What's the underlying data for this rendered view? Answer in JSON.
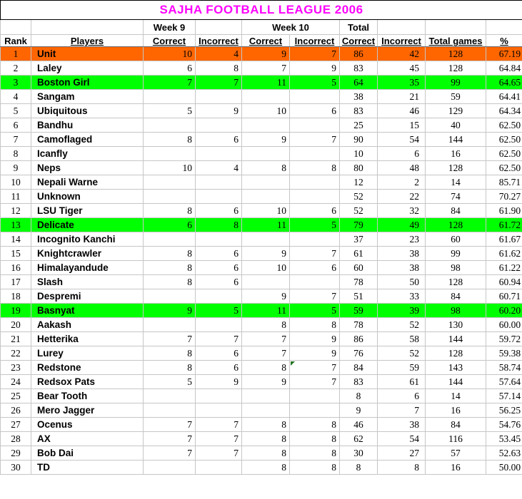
{
  "title": "SAJHA FOOTBALL LEAGUE 2006",
  "colors": {
    "title_text": "#ff00ff",
    "first_place_row": "#ff6600",
    "highlight_row": "#00ff00",
    "gridline": "#c6c6c6",
    "title_border": "#000000",
    "header_bottom_border": "#666666",
    "error_marker": "#217321",
    "text": "#000000"
  },
  "header": {
    "group": {
      "week9": "Week 9",
      "week10": "Week 10",
      "total": "Total"
    },
    "columns": [
      "Rank",
      "Players",
      "Correct",
      "Incorrect",
      "Correct",
      "Incorrect",
      "Correct",
      "Incorrect",
      "Total games",
      "%"
    ]
  },
  "table": {
    "rows": [
      {
        "rank": "1",
        "player": "Unit",
        "w9c": "10",
        "w9i": "4",
        "w10c": "9",
        "w10i": "7",
        "tc": "86",
        "ti": "42",
        "games": "128",
        "pct": "67.19",
        "highlight": "orange",
        "marker": ""
      },
      {
        "rank": "2",
        "player": "Laley",
        "w9c": "6",
        "w9i": "8",
        "w10c": "7",
        "w10i": "9",
        "tc": "83",
        "ti": "45",
        "games": "128",
        "pct": "64.84",
        "highlight": "",
        "marker": ""
      },
      {
        "rank": "3",
        "player": "Boston Girl",
        "w9c": "7",
        "w9i": "7",
        "w10c": "11",
        "w10i": "5",
        "tc": "64",
        "ti": "35",
        "games": "99",
        "pct": "64.65",
        "highlight": "green",
        "marker": ""
      },
      {
        "rank": "4",
        "player": "Sangam",
        "w9c": "",
        "w9i": "",
        "w10c": "",
        "w10i": "",
        "tc": "38",
        "ti": "21",
        "games": "59",
        "pct": "64.41",
        "highlight": "",
        "marker": ""
      },
      {
        "rank": "5",
        "player": "Ubiquitous",
        "w9c": "5",
        "w9i": "9",
        "w10c": "10",
        "w10i": "6",
        "tc": "83",
        "ti": "46",
        "games": "129",
        "pct": "64.34",
        "highlight": "",
        "marker": ""
      },
      {
        "rank": "6",
        "player": "Bandhu",
        "w9c": "",
        "w9i": "",
        "w10c": "",
        "w10i": "",
        "tc": "25",
        "ti": "15",
        "games": "40",
        "pct": "62.50",
        "highlight": "",
        "marker": ""
      },
      {
        "rank": "7",
        "player": "Camoflaged",
        "w9c": "8",
        "w9i": "6",
        "w10c": "9",
        "w10i": "7",
        "tc": "90",
        "ti": "54",
        "games": "144",
        "pct": "62.50",
        "highlight": "",
        "marker": ""
      },
      {
        "rank": "8",
        "player": "Icanfly",
        "w9c": "",
        "w9i": "",
        "w10c": "",
        "w10i": "",
        "tc": "10",
        "ti": "6",
        "games": "16",
        "pct": "62.50",
        "highlight": "",
        "marker": ""
      },
      {
        "rank": "9",
        "player": "Neps",
        "w9c": "10",
        "w9i": "4",
        "w10c": "8",
        "w10i": "8",
        "tc": "80",
        "ti": "48",
        "games": "128",
        "pct": "62.50",
        "highlight": "",
        "marker": ""
      },
      {
        "rank": "10",
        "player": "Nepali Warne",
        "w9c": "",
        "w9i": "",
        "w10c": "",
        "w10i": "",
        "tc": "12",
        "ti": "2",
        "games": "14",
        "pct": "85.71",
        "highlight": "",
        "marker": ""
      },
      {
        "rank": "11",
        "player": "Unknown",
        "w9c": "",
        "w9i": "",
        "w10c": "",
        "w10i": "",
        "tc": "52",
        "ti": "22",
        "games": "74",
        "pct": "70.27",
        "highlight": "",
        "marker": ""
      },
      {
        "rank": "12",
        "player": "LSU Tiger",
        "w9c": "8",
        "w9i": "6",
        "w10c": "10",
        "w10i": "6",
        "tc": "52",
        "ti": "32",
        "games": "84",
        "pct": "61.90",
        "highlight": "",
        "marker": ""
      },
      {
        "rank": "13",
        "player": "Delicate",
        "w9c": "6",
        "w9i": "8",
        "w10c": "11",
        "w10i": "5",
        "tc": "79",
        "ti": "49",
        "games": "128",
        "pct": "61.72",
        "highlight": "green",
        "marker": ""
      },
      {
        "rank": "14",
        "player": "Incognito Kanchi",
        "w9c": "",
        "w9i": "",
        "w10c": "",
        "w10i": "",
        "tc": "37",
        "ti": "23",
        "games": "60",
        "pct": "61.67",
        "highlight": "",
        "marker": ""
      },
      {
        "rank": "15",
        "player": "Knightcrawler",
        "w9c": "8",
        "w9i": "6",
        "w10c": "9",
        "w10i": "7",
        "tc": "61",
        "ti": "38",
        "games": "99",
        "pct": "61.62",
        "highlight": "",
        "marker": ""
      },
      {
        "rank": "16",
        "player": "Himalayandude",
        "w9c": "8",
        "w9i": "6",
        "w10c": "10",
        "w10i": "6",
        "tc": "60",
        "ti": "38",
        "games": "98",
        "pct": "61.22",
        "highlight": "",
        "marker": ""
      },
      {
        "rank": "17",
        "player": "Slash",
        "w9c": "8",
        "w9i": "6",
        "w10c": "",
        "w10i": "",
        "tc": "78",
        "ti": "50",
        "games": "128",
        "pct": "60.94",
        "highlight": "",
        "marker": ""
      },
      {
        "rank": "18",
        "player": "Despremi",
        "w9c": "",
        "w9i": "",
        "w10c": "9",
        "w10i": "7",
        "tc": "51",
        "ti": "33",
        "games": "84",
        "pct": "60.71",
        "highlight": "",
        "marker": ""
      },
      {
        "rank": "19",
        "player": "Basnyat",
        "w9c": "9",
        "w9i": "5",
        "w10c": "11",
        "w10i": "5",
        "tc": "59",
        "ti": "39",
        "games": "98",
        "pct": "60.20",
        "highlight": "green",
        "marker": ""
      },
      {
        "rank": "20",
        "player": "Aakash",
        "w9c": "",
        "w9i": "",
        "w10c": "8",
        "w10i": "8",
        "tc": "78",
        "ti": "52",
        "games": "130",
        "pct": "60.00",
        "highlight": "",
        "marker": ""
      },
      {
        "rank": "21",
        "player": "Hetterika",
        "w9c": "7",
        "w9i": "7",
        "w10c": "7",
        "w10i": "9",
        "tc": "86",
        "ti": "58",
        "games": "144",
        "pct": "59.72",
        "highlight": "",
        "marker": ""
      },
      {
        "rank": "22",
        "player": "Lurey",
        "w9c": "8",
        "w9i": "6",
        "w10c": "7",
        "w10i": "9",
        "tc": "76",
        "ti": "52",
        "games": "128",
        "pct": "59.38",
        "highlight": "",
        "marker": ""
      },
      {
        "rank": "23",
        "player": "Redstone",
        "w9c": "8",
        "w9i": "6",
        "w10c": "8",
        "w10i": "7",
        "tc": "84",
        "ti": "59",
        "games": "143",
        "pct": "58.74",
        "highlight": "",
        "marker": "w10i"
      },
      {
        "rank": "24",
        "player": "Redsox Pats",
        "w9c": "5",
        "w9i": "9",
        "w10c": "9",
        "w10i": "7",
        "tc": "83",
        "ti": "61",
        "games": "144",
        "pct": "57.64",
        "highlight": "",
        "marker": ""
      },
      {
        "rank": "25",
        "player": "Bear Tooth",
        "w9c": "",
        "w9i": "",
        "w10c": "",
        "w10i": "",
        "tc": "8",
        "ti": "6",
        "games": "14",
        "pct": "57.14",
        "highlight": "",
        "marker": ""
      },
      {
        "rank": "26",
        "player": "Mero Jagger",
        "w9c": "",
        "w9i": "",
        "w10c": "",
        "w10i": "",
        "tc": "9",
        "ti": "7",
        "games": "16",
        "pct": "56.25",
        "highlight": "",
        "marker": ""
      },
      {
        "rank": "27",
        "player": "Ocenus",
        "w9c": "7",
        "w9i": "7",
        "w10c": "8",
        "w10i": "8",
        "tc": "46",
        "ti": "38",
        "games": "84",
        "pct": "54.76",
        "highlight": "",
        "marker": ""
      },
      {
        "rank": "28",
        "player": "AX",
        "w9c": "7",
        "w9i": "7",
        "w10c": "8",
        "w10i": "8",
        "tc": "62",
        "ti": "54",
        "games": "116",
        "pct": "53.45",
        "highlight": "",
        "marker": ""
      },
      {
        "rank": "29",
        "player": "Bob Dai",
        "w9c": "7",
        "w9i": "7",
        "w10c": "8",
        "w10i": "8",
        "tc": "30",
        "ti": "27",
        "games": "57",
        "pct": "52.63",
        "highlight": "",
        "marker": ""
      },
      {
        "rank": "30",
        "player": "TD",
        "w9c": "",
        "w9i": "",
        "w10c": "8",
        "w10i": "8",
        "tc": "8",
        "ti": "8",
        "games": "16",
        "pct": "50.00",
        "highlight": "",
        "marker": ""
      }
    ]
  }
}
